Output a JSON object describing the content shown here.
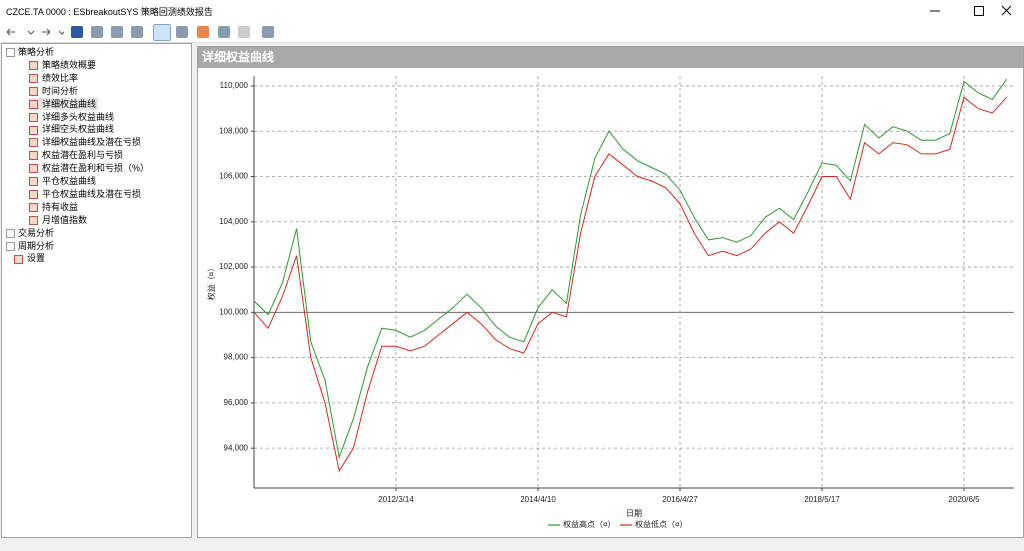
{
  "window": {
    "title": "CZCE.TA 0000 : ESbreakoutSYS 策略回测绩效报告"
  },
  "tree": [
    {
      "label": "策略分析",
      "children": [
        "策略绩效概要",
        "绩效比率",
        "时间分析",
        "详细权益曲线",
        "详细多头权益曲线",
        "详细空头权益曲线",
        "详细权益曲线及潜在亏损",
        "权益潜在盈利与亏损",
        "权益潜在盈利和亏损（%）",
        "平仓权益曲线",
        "平仓权益曲线及潜在亏损",
        "持有收益",
        "月增值指数"
      ]
    },
    {
      "label": "交易分析",
      "children": []
    },
    {
      "label": "周期分析",
      "children": []
    },
    {
      "label": "设置",
      "children": []
    }
  ],
  "panel": {
    "title": "详细权益曲线"
  },
  "chart_data": {
    "type": "line",
    "x_label": "日期",
    "y_label": "权益（¤）",
    "categories": [
      null,
      null,
      null,
      null,
      null,
      null,
      null,
      null,
      null,
      null,
      "2012/3/14",
      null,
      null,
      null,
      null,
      null,
      null,
      null,
      null,
      null,
      "2014/4/10",
      null,
      null,
      null,
      null,
      null,
      null,
      null,
      null,
      null,
      "2016/4/27",
      null,
      null,
      null,
      null,
      null,
      null,
      null,
      null,
      null,
      "2018/5/17",
      null,
      null,
      null,
      null,
      null,
      null,
      null,
      null,
      null,
      "2020/6/5",
      null,
      null,
      null
    ],
    "series": [
      {
        "name": "权益高点（¤）",
        "color": "#2e9a2e",
        "values": [
          100500,
          99900,
          101300,
          103700,
          98700,
          97000,
          93600,
          95300,
          97600,
          99300,
          99200,
          98900,
          99200,
          99700,
          100200,
          100800,
          100200,
          99400,
          98900,
          98700,
          100200,
          101000,
          100400,
          104300,
          106800,
          108000,
          107200,
          106700,
          106400,
          106100,
          105400,
          104200,
          103200,
          103300,
          103100,
          103400,
          104200,
          104600,
          104100,
          105300,
          106600,
          106500,
          105800,
          108300,
          107700,
          108200,
          108000,
          107600,
          107600,
          107900,
          110200,
          109700,
          109400,
          110300
        ]
      },
      {
        "name": "权益低点（¤）",
        "color": "#d42a1e",
        "values": [
          100000,
          99300,
          100700,
          102500,
          98000,
          96000,
          93000,
          94000,
          96500,
          98500,
          98500,
          98300,
          98500,
          99000,
          99500,
          100000,
          99500,
          98800,
          98400,
          98200,
          99500,
          100000,
          99800,
          103500,
          106000,
          107000,
          106500,
          106000,
          105800,
          105500,
          104800,
          103500,
          102500,
          102700,
          102500,
          102800,
          103500,
          104000,
          103500,
          104700,
          106000,
          106000,
          105000,
          107500,
          107000,
          107500,
          107400,
          107000,
          107000,
          107200,
          109500,
          109000,
          108800,
          109500
        ]
      }
    ],
    "ylim": [
      92240,
      110440
    ],
    "yticks": [
      {
        "value": 94000,
        "label": "94,000"
      },
      {
        "value": 96000,
        "label": "96,000"
      },
      {
        "value": 98000,
        "label": "98,000"
      },
      {
        "value": 100000,
        "label": "100,000"
      },
      {
        "value": 102000,
        "label": "102,000"
      },
      {
        "value": 104000,
        "label": "104,000"
      },
      {
        "value": 106000,
        "label": "106,000"
      },
      {
        "value": 108000,
        "label": "108,000"
      },
      {
        "value": 110000,
        "label": "110,000"
      }
    ],
    "grid": true,
    "legend": "bottom"
  }
}
